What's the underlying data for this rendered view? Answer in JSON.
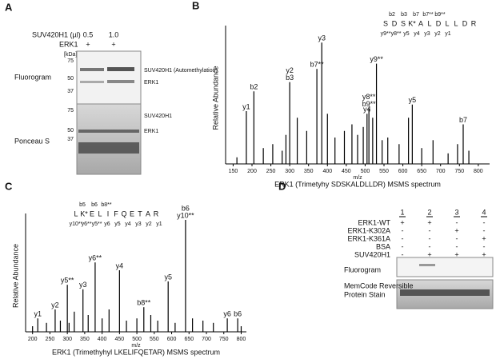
{
  "panel_a": {
    "letter": "A",
    "treatment_label": "SUV420H1 (µl)",
    "doses": [
      "0.5",
      "1.0"
    ],
    "erk1_label": "ERK1",
    "erk1_signs": [
      "+",
      "+"
    ],
    "unit": "[kDa]",
    "fluorogram": {
      "label": "Fluorogram",
      "markers": [
        "75",
        "50",
        "37"
      ],
      "bands": [
        "SUV420H1 (Automethylation)",
        "ERK1"
      ]
    },
    "ponceau": {
      "label": "Ponceau S",
      "markers": [
        "75",
        "50",
        "37"
      ],
      "bands": [
        "SUV420H1",
        "ERK1"
      ]
    }
  },
  "chart_data": [
    {
      "type": "spectrum",
      "panel": "B",
      "title": "ERK1 (Trimetyhy SDSKALDLLDR)   MSMS spectrum",
      "x_label": "m/z",
      "y_label": "Relative Abundance",
      "sequence": [
        "S",
        "D",
        "S",
        "K*",
        "A",
        "L",
        "D",
        "L",
        "L",
        "D",
        "R"
      ],
      "fragments_top": [
        "b2",
        "b3",
        "b7",
        "b7**",
        "b9**"
      ],
      "fragments_bottom": [
        "y9**",
        "y8**",
        "y5",
        "y4",
        "y3",
        "y2",
        "y1"
      ],
      "xlim": [
        130,
        830
      ],
      "ylim": [
        0,
        100
      ],
      "xticks": [
        150,
        200,
        250,
        300,
        350,
        400,
        450,
        500,
        550,
        600,
        650,
        700,
        750,
        800
      ],
      "color": "#000000",
      "peaks": {
        "x": [
          160,
          185,
          205,
          230,
          255,
          280,
          290,
          300,
          320,
          345,
          372,
          385,
          400,
          420,
          445,
          465,
          480,
          495,
          505,
          510,
          520,
          530,
          545,
          560,
          590,
          615,
          625,
          650,
          680,
          720,
          745,
          760,
          775
        ],
        "values": [
          5,
          40,
          55,
          12,
          15,
          10,
          22,
          62,
          35,
          25,
          72,
          92,
          38,
          20,
          25,
          30,
          22,
          28,
          38,
          42,
          35,
          76,
          18,
          20,
          15,
          35,
          45,
          12,
          18,
          8,
          15,
          30,
          10
        ],
        "labels": [
          null,
          [
            "y1"
          ],
          [
            "b2"
          ],
          null,
          null,
          null,
          null,
          [
            "y2",
            "b3"
          ],
          null,
          null,
          [
            "b7**"
          ],
          [
            "y3"
          ],
          null,
          null,
          null,
          null,
          null,
          null,
          [
            "y4"
          ],
          [
            "y8**",
            "b9**"
          ],
          null,
          [
            "y9**"
          ],
          null,
          null,
          null,
          null,
          [
            "y5"
          ],
          null,
          null,
          null,
          null,
          [
            "b7"
          ],
          null
        ]
      }
    },
    {
      "type": "spectrum",
      "panel": "C",
      "title": "ERK1 (Trimethyhyl LKELIFQETAR)   MSMS spectrum",
      "x_label": "m/z",
      "y_label": "Relative Abundance",
      "sequence": [
        "L",
        "K*",
        "E",
        "L",
        "I",
        "F",
        "Q",
        "E",
        "T",
        "A",
        "R"
      ],
      "fragments_top": [
        "b5",
        "b6",
        "b8**"
      ],
      "fragments_bottom": [
        "y10**",
        "y6**",
        "y5**",
        "y6",
        "y5",
        "y4",
        "y3",
        "y2",
        "y1"
      ],
      "xlim": [
        180,
        815
      ],
      "ylim": [
        0,
        100
      ],
      "xticks": [
        200,
        250,
        300,
        350,
        400,
        450,
        500,
        550,
        600,
        650,
        700,
        750,
        800
      ],
      "color": "#000000",
      "peaks": {
        "x": [
          200,
          215,
          240,
          265,
          280,
          300,
          305,
          320,
          345,
          360,
          380,
          400,
          420,
          450,
          470,
          500,
          520,
          540,
          560,
          590,
          610,
          640,
          660,
          690,
          720,
          760,
          790,
          800
        ],
        "values": [
          5,
          12,
          8,
          20,
          10,
          42,
          8,
          18,
          38,
          15,
          62,
          12,
          20,
          55,
          10,
          12,
          22,
          15,
          10,
          45,
          8,
          100,
          12,
          10,
          8,
          12,
          12,
          5
        ],
        "labels": [
          null,
          [
            "y1"
          ],
          null,
          [
            "y2"
          ],
          null,
          [
            "y5**"
          ],
          null,
          null,
          [
            "y3"
          ],
          null,
          [
            "y6**"
          ],
          null,
          null,
          [
            "y4"
          ],
          null,
          null,
          [
            "b8**"
          ],
          null,
          null,
          [
            "y5"
          ],
          null,
          [
            "b6",
            "y10**"
          ],
          null,
          null,
          null,
          [
            "y6"
          ],
          [
            "b6"
          ],
          null
        ]
      }
    }
  ],
  "panel_d": {
    "letter": "D",
    "columns": [
      "1",
      "2",
      "3",
      "4"
    ],
    "rows": [
      {
        "label": "ERK1-WT",
        "signs": [
          "+",
          "+",
          "-",
          "-"
        ]
      },
      {
        "label": "ERK1-K302A",
        "signs": [
          "-",
          "-",
          "+",
          "-"
        ]
      },
      {
        "label": "ERK1-K361A",
        "signs": [
          "-",
          "-",
          "-",
          "+"
        ]
      },
      {
        "label": "BSA",
        "signs": [
          "-",
          "-",
          "-",
          "-"
        ]
      },
      {
        "label": "SUV420H1",
        "signs": [
          "-",
          "+",
          "+",
          "+"
        ]
      }
    ],
    "blots": [
      "Fluorogram",
      "MemCode Reversible",
      "Protein Stain"
    ]
  }
}
